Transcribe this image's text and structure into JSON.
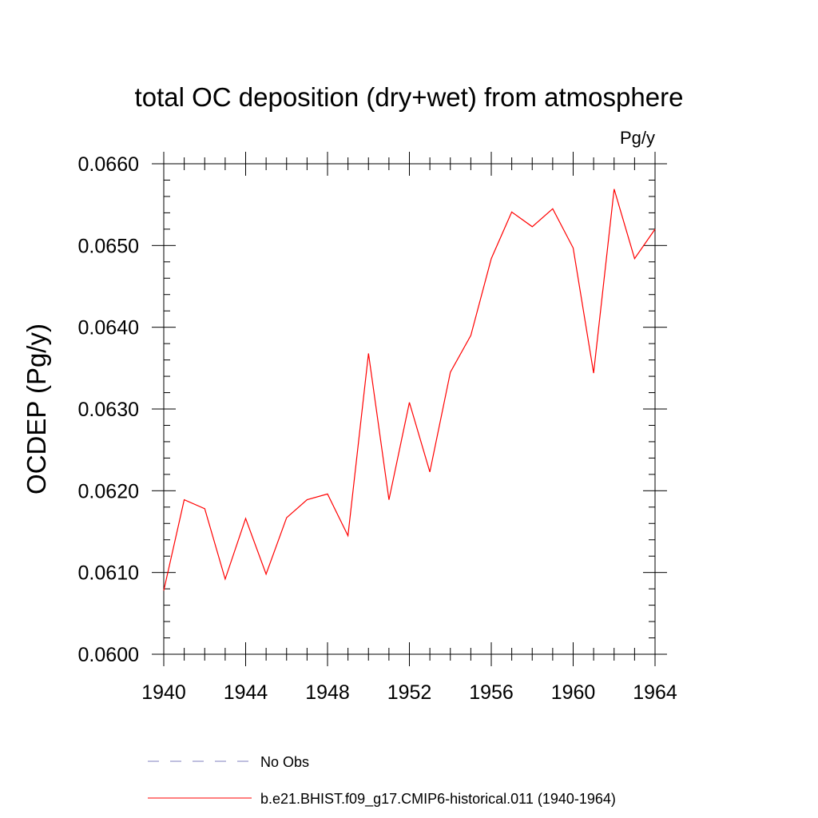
{
  "chart_data": {
    "type": "line",
    "title": "total OC deposition (dry+wet) from atmosphere",
    "units_label": "Pg/y",
    "ylabel": "OCDEP  (Pg/y)",
    "xlabel": "",
    "xlim": [
      1940,
      1964
    ],
    "ylim": [
      0.06,
      0.066
    ],
    "x_ticks": [
      1940,
      1944,
      1948,
      1952,
      1956,
      1960,
      1964
    ],
    "x_tick_labels": [
      "1940",
      "1944",
      "1948",
      "1952",
      "1956",
      "1960",
      "1964"
    ],
    "y_ticks": [
      0.06,
      0.061,
      0.062,
      0.063,
      0.064,
      0.065,
      0.066
    ],
    "y_tick_labels": [
      "0.0600",
      "0.0610",
      "0.0620",
      "0.0630",
      "0.0640",
      "0.0650",
      "0.0660"
    ],
    "grid": false,
    "legend_position": "bottom",
    "series": [
      {
        "name": "No Obs",
        "color": "#7f7fbf",
        "style": "dashed",
        "x": [],
        "y": []
      },
      {
        "name": "b.e21.BHIST.f09_g17.CMIP6-historical.011 (1940-1964)",
        "color": "#ff0000",
        "style": "solid",
        "x": [
          1940,
          1941,
          1942,
          1943,
          1944,
          1945,
          1946,
          1947,
          1948,
          1949,
          1950,
          1951,
          1952,
          1953,
          1954,
          1955,
          1956,
          1957,
          1958,
          1959,
          1960,
          1961,
          1962,
          1963,
          1964
        ],
        "y": [
          0.06078,
          0.06189,
          0.06178,
          0.06092,
          0.06166,
          0.06098,
          0.06167,
          0.06189,
          0.06196,
          0.06145,
          0.06368,
          0.06189,
          0.06308,
          0.06223,
          0.06345,
          0.0639,
          0.06484,
          0.06541,
          0.06523,
          0.06545,
          0.06497,
          0.06344,
          0.06569,
          0.06484,
          0.0652
        ]
      }
    ]
  }
}
